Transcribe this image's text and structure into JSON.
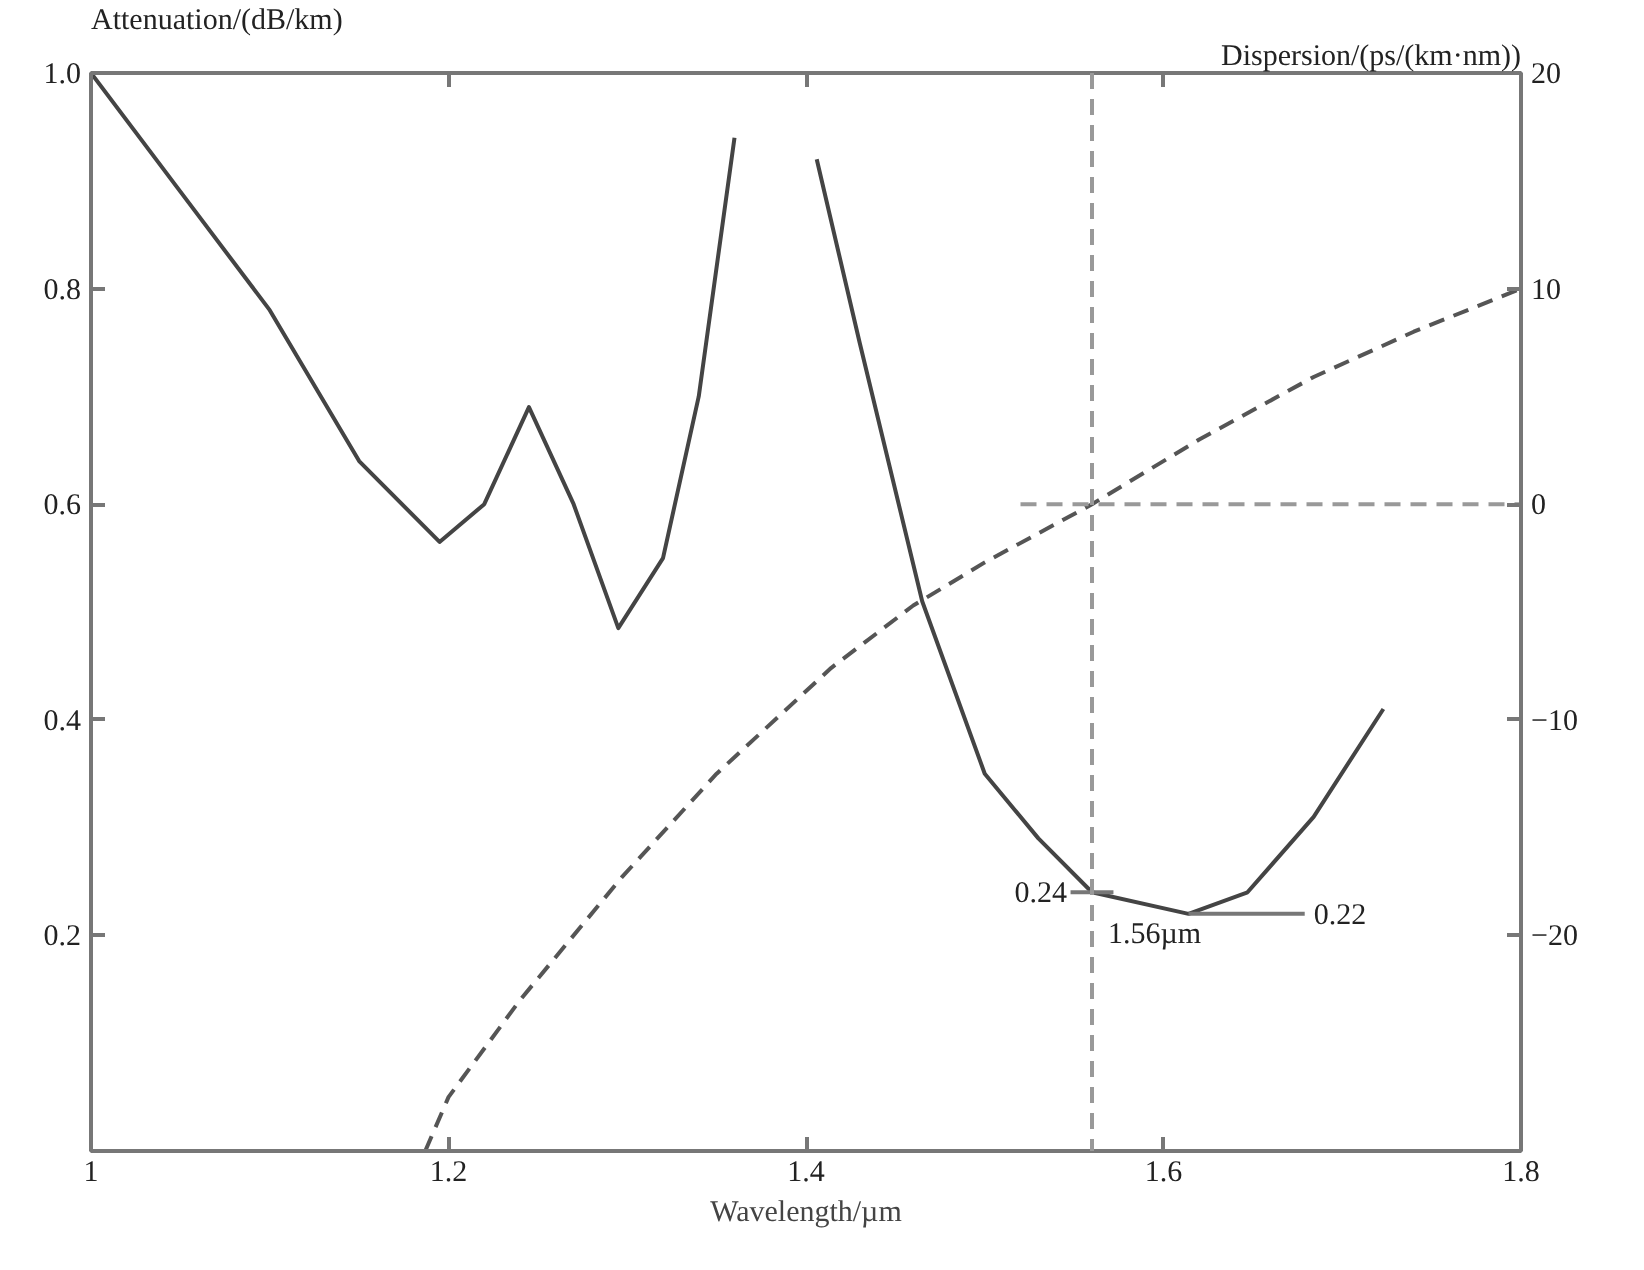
{
  "chart_data": {
    "type": "line",
    "xlabel": "Wavelength/µm",
    "ylabel": "Attenuation/(dB/km)",
    "y2label": "Dispersion/(ps/(km·nm))",
    "xlim": [
      1.0,
      1.8
    ],
    "xticks": [
      {
        "value": 1.0,
        "label": "1"
      },
      1.2,
      1.4,
      1.6,
      1.8
    ],
    "ylim": [
      0,
      1.0
    ],
    "yticks": [
      {
        "value": 1.0,
        "label": "1.0"
      },
      0.8,
      0.6,
      0.4,
      0.2
    ],
    "y2lim": [
      -30,
      20
    ],
    "y2ticks": [
      20,
      10,
      0,
      {
        "value": -10,
        "label": "−10"
      },
      {
        "value": -20,
        "label": "−20"
      }
    ],
    "series": [
      {
        "color": "#444444",
        "line_style": "solid",
        "x": [
          1.0,
          1.05,
          1.1,
          1.15,
          1.195,
          1.22,
          1.245,
          1.27,
          1.295,
          1.32,
          1.34,
          1.36,
          1.38,
          1.406,
          1.43,
          1.465,
          1.5,
          1.53,
          1.56,
          1.614,
          1.647,
          1.684,
          1.723
        ],
        "values": [
          1.0,
          0.89,
          0.78,
          0.64,
          0.565,
          0.6,
          0.69,
          0.6,
          0.485,
          0.55,
          0.7,
          0.94,
          null,
          0.92,
          0.75,
          0.51,
          0.35,
          0.29,
          0.24,
          0.22,
          0.24,
          0.31,
          0.41
        ]
      },
      {
        "axis": "y2",
        "color": "#555555",
        "line_style": "dashed",
        "x": [
          1.187,
          1.2,
          1.24,
          1.297,
          1.35,
          1.414,
          1.46,
          1.5,
          1.56,
          1.62,
          1.684,
          1.74,
          1.8
        ],
        "values": [
          -30,
          -27.5,
          -23,
          -17.3,
          -12.5,
          -7.6,
          -4.7,
          -2.7,
          0,
          3,
          5.9,
          8,
          10
        ]
      },
      {
        "axis": "y2",
        "color": "#999999",
        "line_style": "dashed",
        "x": [
          1.52,
          1.8
        ],
        "values": [
          0,
          0
        ]
      }
    ],
    "ref_lines": [
      {
        "axis": "x",
        "value": 1.56,
        "label": "1.56µm",
        "color": "#999999",
        "line_style": "dashed"
      }
    ],
    "annotations": [
      {
        "text": "0.24",
        "x": 1.56,
        "y": 0.24
      },
      {
        "text": "0.22",
        "x": 1.614,
        "y": 0.22
      }
    ],
    "grid": false
  }
}
